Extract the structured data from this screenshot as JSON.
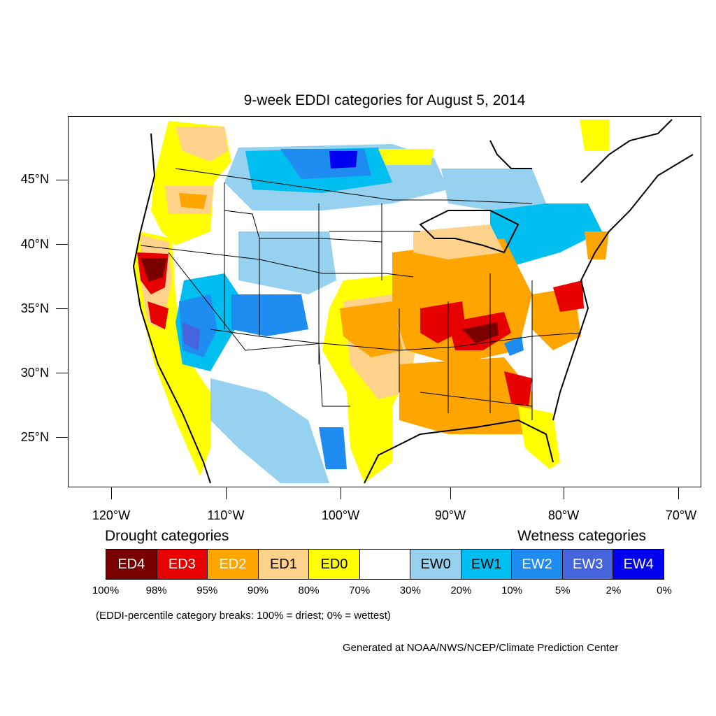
{
  "title": "9-week EDDI categories for August 5, 2014",
  "map": {
    "lat_labels": [
      "45°N",
      "40°N",
      "35°N",
      "30°N",
      "25°N"
    ],
    "lon_labels": [
      "120°W",
      "110°W",
      "100°W",
      "90°W",
      "80°W",
      "70°W"
    ]
  },
  "legend": {
    "drought_heading": "Drought categories",
    "wetness_heading": "Wetness categories",
    "categories": [
      {
        "label": "ED4",
        "color": "#7a0000",
        "text_color": "#ffffff"
      },
      {
        "label": "ED3",
        "color": "#e60000",
        "text_color": "#ffffff"
      },
      {
        "label": "ED2",
        "color": "#ffa500",
        "text_color": "#ffffff"
      },
      {
        "label": "ED1",
        "color": "#ffd28c",
        "text_color": "#000000"
      },
      {
        "label": "ED0",
        "color": "#ffff00",
        "text_color": "#000000"
      },
      {
        "label": "",
        "color": "#ffffff",
        "text_color": "#000000"
      },
      {
        "label": "EW0",
        "color": "#96d2f0",
        "text_color": "#000000"
      },
      {
        "label": "EW1",
        "color": "#00bef0",
        "text_color": "#000000"
      },
      {
        "label": "EW2",
        "color": "#1e8cf0",
        "text_color": "#ffffff"
      },
      {
        "label": "EW3",
        "color": "#4664dc",
        "text_color": "#ffffff"
      },
      {
        "label": "EW4",
        "color": "#0000f0",
        "text_color": "#ffffff"
      }
    ],
    "breaks": [
      "100%",
      "98%",
      "95%",
      "90%",
      "80%",
      "70%",
      "30%",
      "20%",
      "10%",
      "5%",
      "2%",
      "0%"
    ]
  },
  "note": "(EDDI-percentile category breaks: 100% = driest; 0% = wettest)",
  "credit": "Generated at NOAA/NWS/NCEP/Climate Prediction Center"
}
